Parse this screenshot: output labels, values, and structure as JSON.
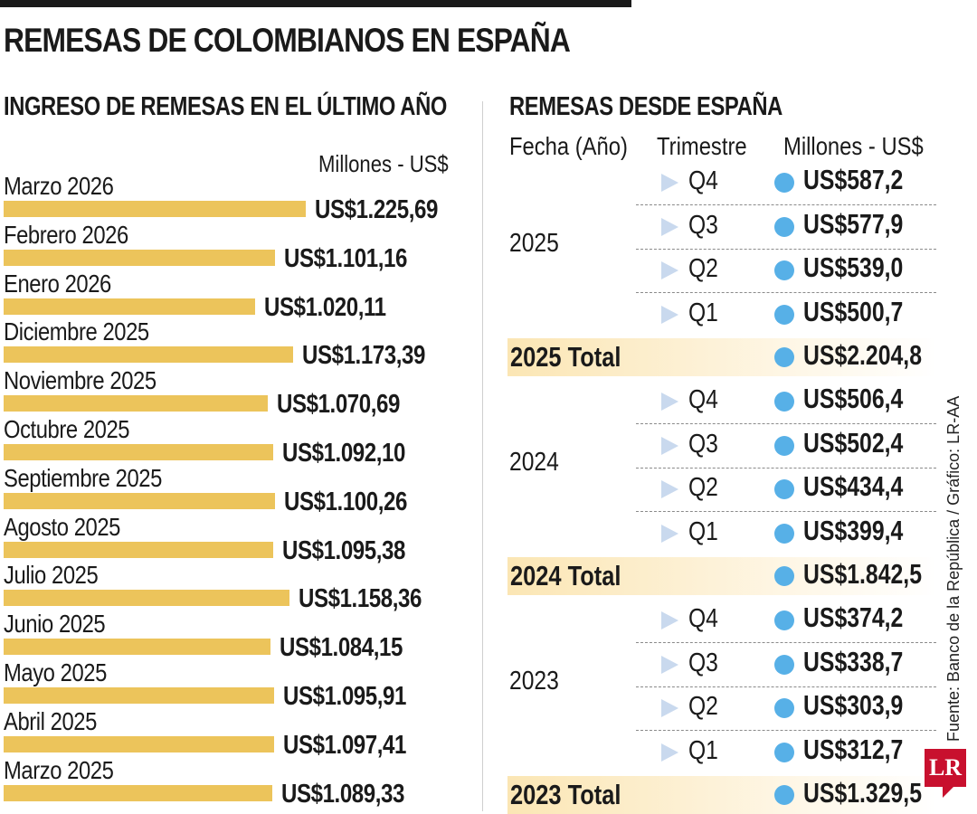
{
  "title": "REMESAS DE COLOMBIANOS EN ESPAÑA",
  "source": "Fuente: Banco de la República / Gráfico: LR-AA",
  "logo_text": "LR",
  "colors": {
    "bar": "#ecc45b",
    "dot": "#57b0e7",
    "triangle": "#c9d9ee",
    "total_highlight": "#fbe6b4",
    "logo": "#c8102e"
  },
  "chart_data": [
    {
      "type": "bar",
      "orientation": "horizontal",
      "title": "INGRESO DE REMESAS EN EL ÚLTIMO AÑO",
      "unit_label": "Millones - US$",
      "categories": [
        "Marzo 2026",
        "Febrero 2026",
        "Enero 2026",
        "Diciembre 2025",
        "Noviembre 2025",
        "Octubre 2025",
        "Septiembre 2025",
        "Agosto 2025",
        "Julio 2025",
        "Junio 2025",
        "Mayo 2025",
        "Abril 2025",
        "Marzo 2025"
      ],
      "values": [
        1225.69,
        1101.16,
        1020.11,
        1173.39,
        1070.69,
        1092.1,
        1100.26,
        1095.38,
        1158.36,
        1084.15,
        1095.91,
        1097.41,
        1089.33
      ],
      "value_labels": [
        "US$1.225,69",
        "US$1.101,16",
        "US$1.020,11",
        "US$1.173,39",
        "US$1.070,69",
        "US$1.092,10",
        "US$1.100,26",
        "US$1.095,38",
        "US$1.158,36",
        "US$1.084,15",
        "US$1.095,91",
        "US$1.097,41",
        "US$1.089,33"
      ]
    },
    {
      "type": "table",
      "title": "REMESAS DESDE ESPAÑA",
      "columns": [
        "Fecha (Año)",
        "Trimestre",
        "Millones - US$"
      ],
      "groups": [
        {
          "year": "2025",
          "total_label": "2025 Total",
          "total": "US$2.204,8",
          "rows": [
            {
              "quarter": "Q4",
              "value": "US$587,2"
            },
            {
              "quarter": "Q3",
              "value": "US$577,9"
            },
            {
              "quarter": "Q2",
              "value": "US$539,0"
            },
            {
              "quarter": "Q1",
              "value": "US$500,7"
            }
          ]
        },
        {
          "year": "2024",
          "total_label": "2024 Total",
          "total": "US$1.842,5",
          "rows": [
            {
              "quarter": "Q4",
              "value": "US$506,4"
            },
            {
              "quarter": "Q3",
              "value": "US$502,4"
            },
            {
              "quarter": "Q2",
              "value": "US$434,4"
            },
            {
              "quarter": "Q1",
              "value": "US$399,4"
            }
          ]
        },
        {
          "year": "2023",
          "total_label": "2023 Total",
          "total": "US$1.329,5",
          "rows": [
            {
              "quarter": "Q4",
              "value": "US$374,2"
            },
            {
              "quarter": "Q3",
              "value": "US$338,7"
            },
            {
              "quarter": "Q2",
              "value": "US$303,9"
            },
            {
              "quarter": "Q1",
              "value": "US$312,7"
            }
          ]
        }
      ]
    }
  ]
}
